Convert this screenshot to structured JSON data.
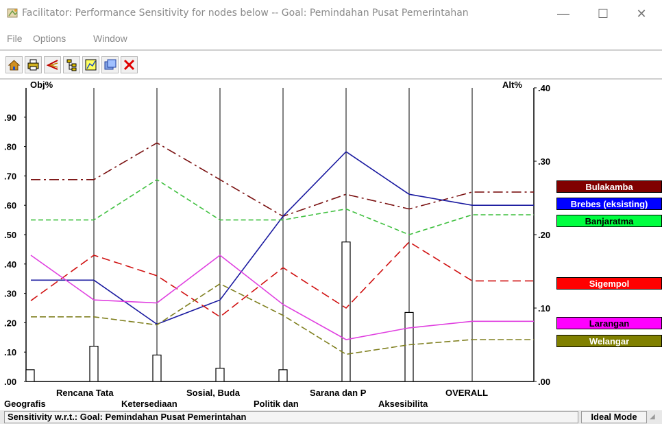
{
  "window": {
    "title": "Facilitator: Performance Sensitivity for nodes below -- Goal: Pemindahan Pusat Pemerintahan",
    "minimize_glyph": "—",
    "maximize_glyph": "☐",
    "close_glyph": "✕"
  },
  "menu": {
    "items": [
      "File",
      "Options",
      "Window"
    ]
  },
  "toolbar": {
    "buttons": [
      {
        "icon": "home-icon",
        "color": "#c08000"
      },
      {
        "icon": "printer-icon",
        "color": "#c0a000"
      },
      {
        "icon": "scissors-icon",
        "color": "#c00000"
      },
      {
        "icon": "tree-icon",
        "color": "#c0a000"
      },
      {
        "icon": "graph-icon",
        "color": "#c0c000"
      },
      {
        "icon": "window-icon",
        "color": "#2050c0"
      },
      {
        "icon": "close-red-icon",
        "color": "#e00000"
      }
    ]
  },
  "chart_data": {
    "type": "line",
    "left_axis_title": "Obj%",
    "right_axis_title": "Alt%",
    "left_ticks": [
      ".00",
      ".10",
      ".20",
      ".30",
      ".40",
      ".50",
      ".60",
      ".70",
      ".80",
      ".90"
    ],
    "right_ticks": [
      ".00",
      ".10",
      ".20",
      ".30",
      ".40"
    ],
    "left_range": [
      0,
      1
    ],
    "right_range": [
      0,
      0.4
    ],
    "categories": [
      "Geografis",
      "Rencana Tata",
      "Ketersediaan",
      "Sosial, Buda",
      "Politik dan",
      "Sarana dan P",
      "Aksesibilita",
      "OVERALL"
    ],
    "objective_bars": [
      0.04,
      0.12,
      0.09,
      0.045,
      0.04,
      0.475,
      0.235
    ],
    "series": [
      {
        "name": "Bulakamba",
        "color": "#7a1010",
        "dash": "14 5 3 5",
        "values": [
          0.275,
          0.275,
          0.325,
          0.275,
          0.225,
          0.255,
          0.235,
          0.258
        ]
      },
      {
        "name": "Brebes (eksisting)",
        "color": "#1a1aa0",
        "dash": "",
        "values": [
          0.138,
          0.138,
          0.078,
          0.111,
          0.225,
          0.313,
          0.255,
          0.24
        ]
      },
      {
        "name": "Banjaratma",
        "color": "#40c040",
        "dash": "7 4",
        "values": [
          0.22,
          0.22,
          0.275,
          0.22,
          0.22,
          0.235,
          0.2,
          0.227
        ]
      },
      {
        "name": "Sigempol",
        "color": "#d01010",
        "dash": "12 6",
        "values": [
          0.11,
          0.172,
          0.144,
          0.088,
          0.155,
          0.1,
          0.19,
          0.137
        ]
      },
      {
        "name": "Larangan",
        "color": "#e040e0",
        "dash": "",
        "values": [
          0.172,
          0.111,
          0.107,
          0.172,
          0.105,
          0.057,
          0.073,
          0.082
        ]
      },
      {
        "name": "Welangar",
        "color": "#808020",
        "dash": "9 4",
        "values": [
          0.088,
          0.088,
          0.077,
          0.133,
          0.09,
          0.037,
          0.05,
          0.057
        ]
      }
    ]
  },
  "legend_colors": {
    "Bulakamba": {
      "bg": "#800000",
      "fg": "#ffffff"
    },
    "Brebes (eksisting)": {
      "bg": "#0000ff",
      "fg": "#ffffff"
    },
    "Banjaratma": {
      "bg": "#00ff40",
      "fg": "#000000"
    },
    "Sigempol": {
      "bg": "#ff0000",
      "fg": "#ffffff"
    },
    "Larangan": {
      "bg": "#ff00ff",
      "fg": "#000000"
    },
    "Welangar": {
      "bg": "#808000",
      "fg": "#ffffff"
    }
  },
  "status": {
    "left": "Sensitivity w.r.t.: Goal: Pemindahan Pusat Pemerintahan",
    "right": "Ideal Mode"
  }
}
